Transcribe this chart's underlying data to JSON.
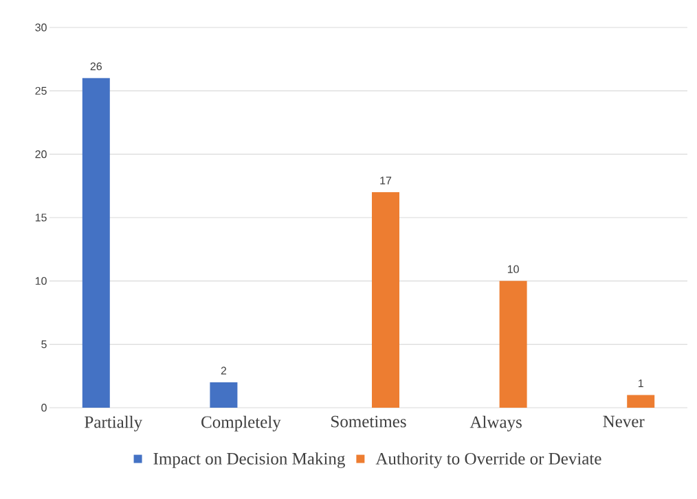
{
  "chart_data": {
    "type": "bar",
    "categories": [
      "Partially",
      "Completely",
      "Sometimes",
      "Always",
      "Never"
    ],
    "series": [
      {
        "name": "Impact on Decision Making",
        "color": "#4472c4",
        "values": [
          26,
          2,
          null,
          null,
          null
        ]
      },
      {
        "name": "Authority to Override or Deviate",
        "color": "#ed7d31",
        "values": [
          null,
          null,
          17,
          10,
          1
        ]
      }
    ],
    "ylim": [
      0,
      30
    ],
    "yticks": [
      0,
      5,
      10,
      15,
      20,
      25,
      30
    ],
    "grid": "y",
    "legend": "bottom",
    "data_labels": true
  }
}
